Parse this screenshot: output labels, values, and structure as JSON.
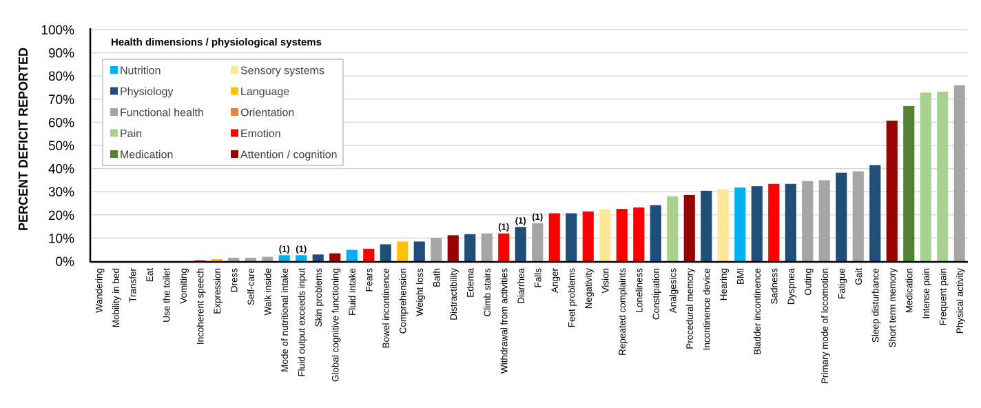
{
  "chart_data": {
    "type": "bar",
    "title": "",
    "xlabel": "",
    "ylabel": "PERCENT DEFICIT REPORTED",
    "ylim": [
      0,
      100
    ],
    "yticks": [
      "0%",
      "10%",
      "20%",
      "30%",
      "40%",
      "50%",
      "60%",
      "70%",
      "80%",
      "90%",
      "100%"
    ],
    "grid": true,
    "legend": {
      "title": "Health dimensions / physiological systems",
      "placement": "top-left",
      "entries": [
        {
          "name": "Nutrition",
          "color": "#00B0F0"
        },
        {
          "name": "Physiology",
          "color": "#1F4E79"
        },
        {
          "name": "Functional health",
          "color": "#A5A5A5"
        },
        {
          "name": "Pain",
          "color": "#A9D18E"
        },
        {
          "name": "Medication",
          "color": "#548235"
        },
        {
          "name": "Sensory systems",
          "color": "#FFE699"
        },
        {
          "name": "Language",
          "color": "#FFC000"
        },
        {
          "name": "Orientation",
          "color": "#ED7D31"
        },
        {
          "name": "Emotion",
          "color": "#FF0000"
        },
        {
          "name": "Attention / cognition",
          "color": "#990000"
        }
      ]
    },
    "bars": [
      {
        "label": "Wandering",
        "value": 0,
        "group": "Functional health",
        "note": ""
      },
      {
        "label": "Mobility in bed",
        "value": 0,
        "group": "Functional health",
        "note": ""
      },
      {
        "label": "Transfer",
        "value": 0,
        "group": "Functional health",
        "note": ""
      },
      {
        "label": "Eat",
        "value": 0,
        "group": "Functional health",
        "note": ""
      },
      {
        "label": "Use the toilet",
        "value": 0,
        "group": "Functional health",
        "note": ""
      },
      {
        "label": "Vomiting",
        "value": 0,
        "group": "Physiology",
        "note": ""
      },
      {
        "label": "Incoherent speech",
        "value": 0.6,
        "group": "Orientation",
        "note": ""
      },
      {
        "label": "Expression",
        "value": 0.9,
        "group": "Language",
        "note": ""
      },
      {
        "label": "Dress",
        "value": 1.5,
        "group": "Functional health",
        "note": ""
      },
      {
        "label": "Self-care",
        "value": 1.5,
        "group": "Functional health",
        "note": ""
      },
      {
        "label": "Walk inside",
        "value": 1.9,
        "group": "Functional health",
        "note": ""
      },
      {
        "label": "Mode of nutritional intake",
        "value": 2.6,
        "group": "Nutrition",
        "note": "(1)"
      },
      {
        "label": "Fluid output exceeds input",
        "value": 2.6,
        "group": "Nutrition",
        "note": "(1)"
      },
      {
        "label": "Skin problems",
        "value": 2.9,
        "group": "Physiology",
        "note": ""
      },
      {
        "label": "Global cognitive functioning",
        "value": 3.4,
        "group": "Attention / cognition",
        "note": ""
      },
      {
        "label": "Fluid intake",
        "value": 4.9,
        "group": "Nutrition",
        "note": ""
      },
      {
        "label": "Fears",
        "value": 5.4,
        "group": "Emotion",
        "note": ""
      },
      {
        "label": "Bowel incontinence",
        "value": 7.3,
        "group": "Physiology",
        "note": ""
      },
      {
        "label": "Comprehension",
        "value": 8.5,
        "group": "Language",
        "note": ""
      },
      {
        "label": "Weight loss",
        "value": 8.5,
        "group": "Physiology",
        "note": ""
      },
      {
        "label": "Bath",
        "value": 10.1,
        "group": "Functional health",
        "note": ""
      },
      {
        "label": "Distractibility",
        "value": 11.2,
        "group": "Attention / cognition",
        "note": ""
      },
      {
        "label": "Edema",
        "value": 11.7,
        "group": "Physiology",
        "note": ""
      },
      {
        "label": "Climb stairs",
        "value": 12.0,
        "group": "Functional health",
        "note": ""
      },
      {
        "label": "Withdrawal from activities",
        "value": 12.0,
        "group": "Emotion",
        "note": "(1)"
      },
      {
        "label": "Diarrhea",
        "value": 14.8,
        "group": "Physiology",
        "note": "(1)"
      },
      {
        "label": "Falls",
        "value": 16.4,
        "group": "Functional health",
        "note": "(1)"
      },
      {
        "label": "Anger",
        "value": 20.7,
        "group": "Emotion",
        "note": ""
      },
      {
        "label": "Feet problems",
        "value": 20.7,
        "group": "Physiology",
        "note": ""
      },
      {
        "label": "Negativity",
        "value": 21.5,
        "group": "Emotion",
        "note": ""
      },
      {
        "label": "Vision",
        "value": 22.3,
        "group": "Sensory systems",
        "note": ""
      },
      {
        "label": "Repeated complaints",
        "value": 22.6,
        "group": "Emotion",
        "note": ""
      },
      {
        "label": "Loneliness",
        "value": 23.2,
        "group": "Emotion",
        "note": ""
      },
      {
        "label": "Constipation",
        "value": 24.2,
        "group": "Physiology",
        "note": ""
      },
      {
        "label": "Analgesics",
        "value": 28.0,
        "group": "Pain",
        "note": ""
      },
      {
        "label": "Procedural memory",
        "value": 28.6,
        "group": "Attention / cognition",
        "note": ""
      },
      {
        "label": "Incontinence device",
        "value": 30.4,
        "group": "Physiology",
        "note": ""
      },
      {
        "label": "Hearing",
        "value": 31.0,
        "group": "Sensory systems",
        "note": ""
      },
      {
        "label": "BMI",
        "value": 31.8,
        "group": "Nutrition",
        "note": ""
      },
      {
        "label": "Bladder incontinence",
        "value": 32.4,
        "group": "Physiology",
        "note": ""
      },
      {
        "label": "Sadness",
        "value": 33.4,
        "group": "Emotion",
        "note": ""
      },
      {
        "label": "Dyspnea",
        "value": 33.4,
        "group": "Physiology",
        "note": ""
      },
      {
        "label": "Outing",
        "value": 34.6,
        "group": "Functional health",
        "note": ""
      },
      {
        "label": "Primary mode of locomotion",
        "value": 35.0,
        "group": "Functional health",
        "note": ""
      },
      {
        "label": "Fatigue",
        "value": 38.2,
        "group": "Physiology",
        "note": ""
      },
      {
        "label": "Gait",
        "value": 38.8,
        "group": "Functional health",
        "note": ""
      },
      {
        "label": "Sleep disturbance",
        "value": 41.5,
        "group": "Physiology",
        "note": ""
      },
      {
        "label": "Short term memory",
        "value": 60.7,
        "group": "Attention / cognition",
        "note": ""
      },
      {
        "label": "Medication",
        "value": 67.0,
        "group": "Medication",
        "note": ""
      },
      {
        "label": "Intense pain",
        "value": 72.8,
        "group": "Pain",
        "note": ""
      },
      {
        "label": "Frequent pain",
        "value": 73.2,
        "group": "Pain",
        "note": ""
      },
      {
        "label": "Physical activity",
        "value": 76.0,
        "group": "Functional health",
        "note": ""
      }
    ]
  }
}
